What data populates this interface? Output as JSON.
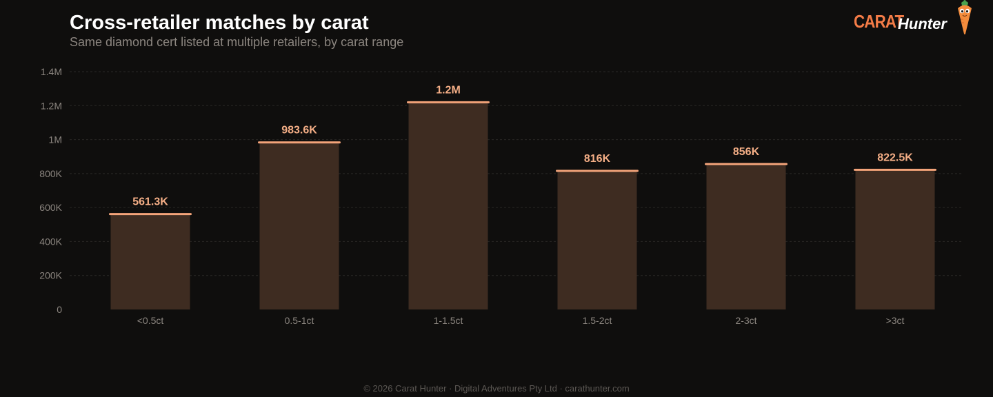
{
  "header": {
    "title": "Cross-retailer matches by carat",
    "subtitle": "Same diamond cert listed at multiple retailers, by carat range"
  },
  "brand": {
    "word_1": "CARAT",
    "word_2": "Hunter",
    "mascot_icon": "carrot-mascot-icon"
  },
  "footer": {
    "text": "© 2026 Carat Hunter · Digital Adventures Pty Ltd · carathunter.com"
  },
  "colors": {
    "background": "#0f0e0d",
    "bar_fill": "#3e2c21",
    "bar_cap": "#f4a47a",
    "value_label": "#f4ae86",
    "axis_text": "#8c8680",
    "grid": "#2a2826",
    "brand_accent": "#f47c47"
  },
  "chart_data": {
    "type": "bar",
    "title": "Cross-retailer matches by carat",
    "subtitle": "Same diamond cert listed at multiple retailers, by carat range",
    "categories": [
      "<0.5ct",
      "0.5-1ct",
      "1-1.5ct",
      "1.5-2ct",
      "2-3ct",
      ">3ct"
    ],
    "values": [
      561300,
      983600,
      1220000,
      816000,
      856000,
      822500
    ],
    "value_labels": [
      "561.3K",
      "983.6K",
      "1.2M",
      "816K",
      "856K",
      "822.5K"
    ],
    "xlabel": "",
    "ylabel": "",
    "ylim": [
      0,
      1400000
    ],
    "yticks": [
      0,
      200000,
      400000,
      600000,
      800000,
      1000000,
      1200000,
      1400000
    ],
    "ytick_labels": [
      "0",
      "200K",
      "400K",
      "600K",
      "800K",
      "1M",
      "1.2M",
      "1.4M"
    ],
    "grid": true,
    "legend": "none"
  }
}
